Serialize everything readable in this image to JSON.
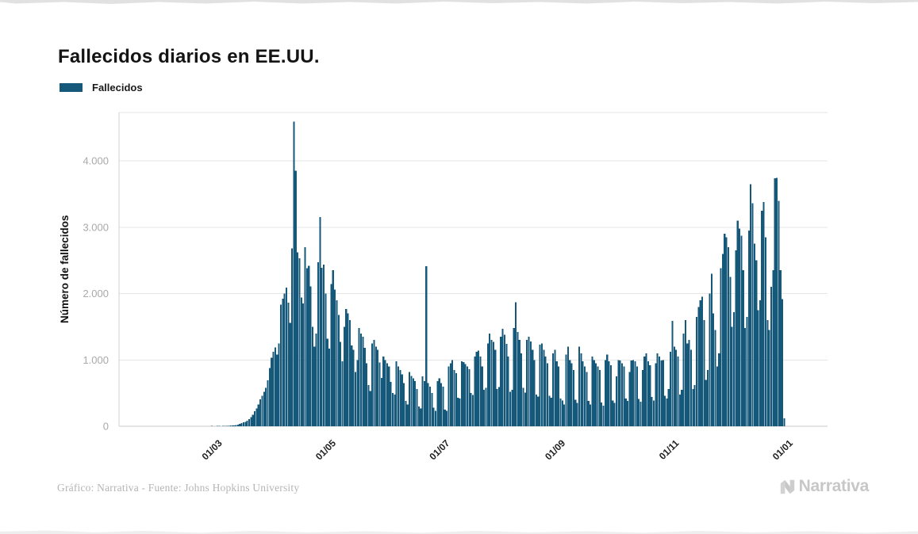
{
  "page": {
    "title": "Fallecidos diarios en EE.UU."
  },
  "legend": {
    "label": "Fallecidos"
  },
  "footer": {
    "credit": "Gráfico: Narrativa - Fuente: Johns Hopkins University",
    "logo_text": "Narrativa"
  },
  "chart_data": {
    "type": "bar",
    "title": "Fallecidos diarios en EE.UU.",
    "series_name": "Fallecidos",
    "ylabel": "Número de fallecidos",
    "xlabel": "",
    "bar_color": "#15587a",
    "grid": "horizontal",
    "legend_position": "top-left",
    "ylim": [
      0,
      4600
    ],
    "y_ticks": [
      {
        "value": 0,
        "label": "0"
      },
      {
        "value": 1000,
        "label": "1.000"
      },
      {
        "value": 2000,
        "label": "2.000"
      },
      {
        "value": 3000,
        "label": "3.000"
      },
      {
        "value": 4000,
        "label": "4.000"
      }
    ],
    "x_ticks": [
      {
        "index": 39,
        "label": "01/03"
      },
      {
        "index": 100,
        "label": "01/05"
      },
      {
        "index": 161,
        "label": "01/07"
      },
      {
        "index": 223,
        "label": "01/09"
      },
      {
        "index": 284,
        "label": "01/11"
      },
      {
        "index": 345,
        "label": "01/01"
      }
    ],
    "start_date": "2020-01-22",
    "values": [
      0,
      0,
      0,
      0,
      0,
      0,
      0,
      0,
      0,
      0,
      0,
      0,
      0,
      0,
      0,
      0,
      0,
      0,
      0,
      0,
      0,
      0,
      0,
      0,
      0,
      0,
      0,
      0,
      0,
      0,
      0,
      0,
      0,
      0,
      0,
      0,
      0,
      0,
      1,
      1,
      5,
      3,
      2,
      4,
      4,
      3,
      5,
      6,
      7,
      8,
      10,
      12,
      14,
      19,
      25,
      34,
      45,
      57,
      68,
      85,
      110,
      140,
      175,
      225,
      270,
      330,
      405,
      460,
      520,
      580,
      690,
      880,
      1030,
      1120,
      1190,
      1080,
      1250,
      1830,
      1920,
      2000,
      2090,
      1860,
      1560,
      2680,
      4591,
      3850,
      2620,
      2530,
      1940,
      1850,
      2700,
      2380,
      2420,
      2110,
      1500,
      1200,
      1400,
      2470,
      3150,
      2390,
      2433,
      2000,
      1320,
      1170,
      2144,
      2350,
      2060,
      1900,
      1680,
      1270,
      980,
      1500,
      1770,
      1700,
      1600,
      1220,
      1150,
      820,
      1000,
      1480,
      1400,
      1350,
      1180,
      950,
      620,
      530,
      1250,
      1300,
      1200,
      1150,
      960,
      730,
      1050,
      1000,
      950,
      900,
      670,
      500,
      480,
      980,
      900,
      850,
      780,
      650,
      380,
      330,
      820,
      760,
      720,
      680,
      560,
      300,
      270,
      750,
      680,
      2410,
      650,
      600,
      500,
      280,
      230,
      680,
      720,
      650,
      600,
      250,
      230,
      900,
      950,
      1000,
      850,
      800,
      430,
      420,
      980,
      970,
      940,
      900,
      860,
      500,
      470,
      1050,
      1120,
      1140,
      1050,
      900,
      550,
      580,
      1250,
      1400,
      1300,
      1270,
      1150,
      560,
      590,
      1350,
      1470,
      1380,
      1240,
      1050,
      520,
      550,
      1480,
      1870,
      1420,
      1300,
      1100,
      580,
      510,
      1300,
      1350,
      1280,
      1150,
      1000,
      480,
      450,
      1230,
      1250,
      1150,
      1050,
      950,
      460,
      430,
      1100,
      1150,
      980,
      900,
      420,
      390,
      330,
      1080,
      1200,
      1000,
      950,
      850,
      400,
      350,
      1200,
      1100,
      980,
      900,
      820,
      380,
      330,
      1050,
      1000,
      950,
      900,
      850,
      360,
      310,
      1000,
      1080,
      980,
      920,
      390,
      350,
      750,
      1000,
      990,
      950,
      900,
      420,
      380,
      820,
      990,
      1000,
      980,
      900,
      410,
      370,
      850,
      1050,
      1100,
      980,
      920,
      440,
      390,
      950,
      1100,
      1050,
      990,
      1000,
      460,
      420,
      560,
      1120,
      1590,
      1200,
      1150,
      1050,
      480,
      550,
      1400,
      1600,
      1250,
      1300,
      1150,
      560,
      620,
      1650,
      1800,
      1900,
      1950,
      1600,
      700,
      850,
      2000,
      2300,
      1700,
      1450,
      900,
      1100,
      2380,
      2600,
      2900,
      2850,
      2700,
      2250,
      1500,
      1720,
      2650,
      3100,
      2980,
      2870,
      2350,
      1480,
      1650,
      2950,
      3650,
      3360,
      2750,
      2500,
      1750,
      1900,
      3250,
      3380,
      2850,
      1600,
      1450,
      2100,
      2350,
      3740,
      3745,
      3400,
      2350,
      1915,
      120
    ]
  }
}
